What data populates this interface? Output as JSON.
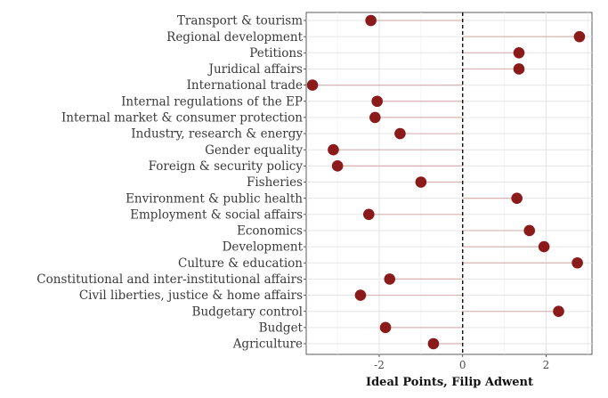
{
  "chart_data": {
    "type": "scatter",
    "style": "lollipop",
    "orientation": "horizontal",
    "xlabel": "Ideal Points, Filip Adwent",
    "ylabel": "",
    "xlim": [
      -3.75,
      3.1
    ],
    "x_ticks": [
      -2,
      0,
      2
    ],
    "x_tick_labels": [
      "-2",
      "0",
      "2"
    ],
    "reference_line": {
      "x": 0,
      "style": "dashed"
    },
    "grid": true,
    "categories": [
      "Transport & tourism",
      "Regional development",
      "Petitions",
      "Juridical affairs",
      "International trade",
      "Internal regulations of the EP",
      "Internal market & consumer protection",
      "Industry, research & energy",
      "Gender equality",
      "Foreign & security policy",
      "Fisheries",
      "Environment & public health",
      "Employment & social affairs",
      "Economics",
      "Development",
      "Culture & education",
      "Constitutional and inter-institutional affairs",
      "Civil liberties, justice & home affairs",
      "Budgetary control",
      "Budget",
      "Agriculture"
    ],
    "values": [
      -2.2,
      2.8,
      1.35,
      1.35,
      -3.6,
      -2.05,
      -2.1,
      -1.5,
      -3.1,
      -3.0,
      -1.0,
      1.3,
      -2.25,
      1.6,
      1.95,
      2.75,
      -1.75,
      -2.45,
      2.3,
      -1.85,
      -0.7
    ],
    "point_color": "#8b1a1a",
    "stem_color": "#d8b4b4"
  }
}
